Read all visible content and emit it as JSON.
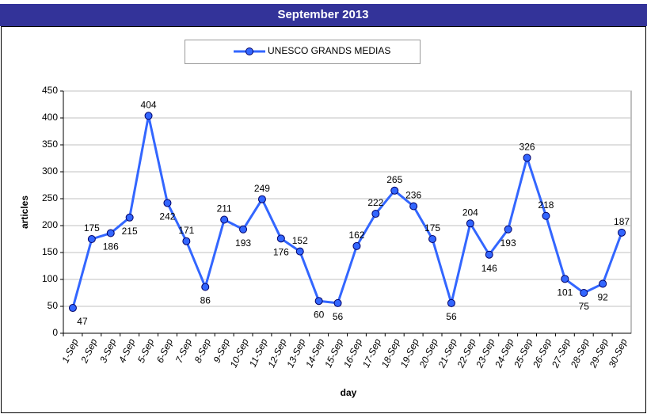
{
  "chart_data": {
    "type": "line",
    "header": "September 2013",
    "xlabel": "day",
    "ylabel": "articles",
    "categories": [
      "1-Sep",
      "2-Sep",
      "3-Sep",
      "4-Sep",
      "5-Sep",
      "6-Sep",
      "7-Sep",
      "8-Sep",
      "9-Sep",
      "10-Sep",
      "11-Sep",
      "12-Sep",
      "13-Sep",
      "14-Sep",
      "15-Sep",
      "16-Sep",
      "17-Sep",
      "18-Sep",
      "19-Sep",
      "20-Sep",
      "21-Sep",
      "22-Sep",
      "23-Sep",
      "24-Sep",
      "25-Sep",
      "26-Sep",
      "27-Sep",
      "28-Sep",
      "29-Sep",
      "30-Sep"
    ],
    "series": [
      {
        "name": "UNESCO GRANDS MEDIAS",
        "color": "#3366ff",
        "values": [
          47,
          175,
          186,
          215,
          404,
          242,
          171,
          86,
          211,
          193,
          249,
          176,
          152,
          60,
          56,
          162,
          222,
          265,
          236,
          175,
          56,
          204,
          146,
          193,
          326,
          218,
          101,
          75,
          92,
          187
        ]
      }
    ],
    "ylim": [
      0,
      450
    ],
    "yticks": [
      0,
      50,
      100,
      150,
      200,
      250,
      300,
      350,
      400,
      450
    ],
    "grid": true,
    "legend": "top"
  }
}
